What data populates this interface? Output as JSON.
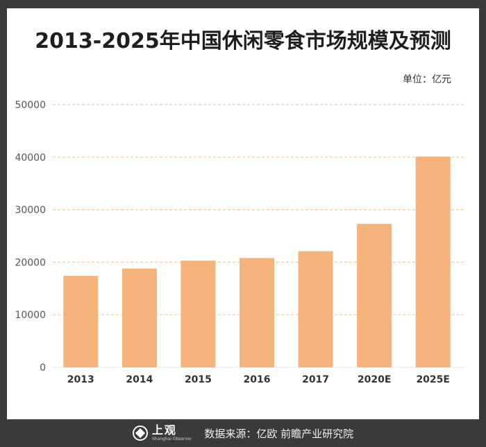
{
  "chart_data": {
    "type": "bar",
    "title": "2013-2025年中国休闲零食市场规模及预测",
    "unit_label": "单位：亿元",
    "categories": [
      "2013",
      "2014",
      "2015",
      "2016",
      "2017",
      "2020E",
      "2025E"
    ],
    "values": [
      17400,
      18800,
      20300,
      20800,
      22100,
      27300,
      40100
    ],
    "ylim": [
      0,
      50000
    ],
    "yticks": [
      0,
      10000,
      20000,
      30000,
      40000,
      50000
    ],
    "grid": true,
    "xlabel": "",
    "ylabel": ""
  },
  "colors": {
    "bar": "#f5b27a",
    "grid": "#f0c99a",
    "frame": "#3a3a3a"
  },
  "footer": {
    "logo_name": "上观",
    "logo_en": "Shanghai Observer",
    "source": "数据来源：亿欧 前瞻产业研究院"
  }
}
